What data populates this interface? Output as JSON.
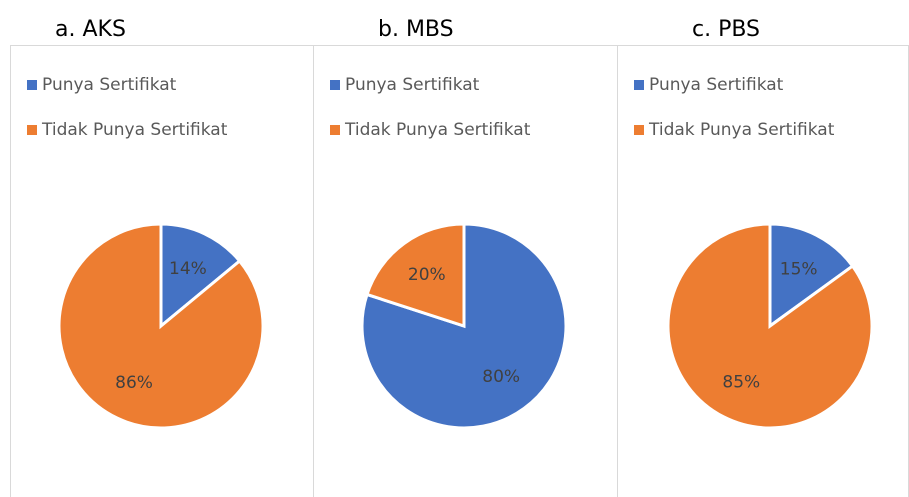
{
  "chart_data": [
    {
      "type": "pie",
      "title": "a.   AKS",
      "categories": [
        "Punya Sertifikat",
        "Tidak Punya Sertifikat"
      ],
      "values": [
        14,
        86
      ],
      "value_labels": [
        "14%",
        "86%"
      ],
      "colors": [
        "#4472c4",
        "#ed7d31"
      ],
      "legend": "top"
    },
    {
      "type": "pie",
      "title": "b. MBS",
      "categories": [
        "Punya Sertifikat",
        "Tidak Punya Sertifikat"
      ],
      "values": [
        80,
        20
      ],
      "value_labels": [
        "80%",
        "20%"
      ],
      "colors": [
        "#4472c4",
        "#ed7d31"
      ],
      "legend": "top"
    },
    {
      "type": "pie",
      "title": "c. PBS",
      "categories": [
        "Punya Sertifikat",
        "Tidak Punya Sertifikat"
      ],
      "values": [
        15,
        85
      ],
      "value_labels": [
        "15%",
        "85%"
      ],
      "colors": [
        "#4472c4",
        "#ed7d31"
      ],
      "legend": "top"
    }
  ]
}
